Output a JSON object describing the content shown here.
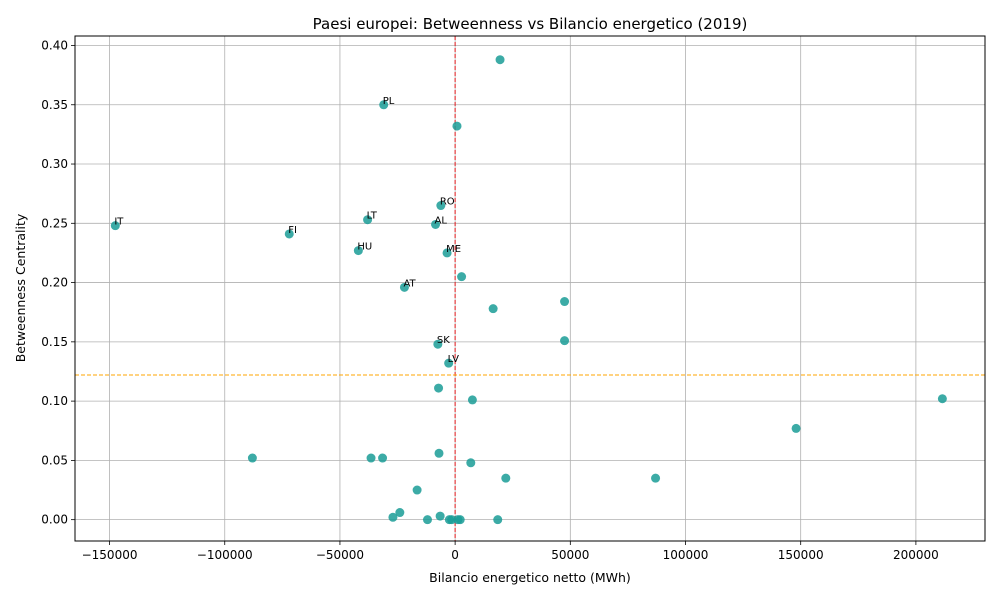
{
  "chart_data": {
    "type": "scatter",
    "title": "Paesi europei: Betweenness vs Bilancio energetico (2019)",
    "xlabel": "Bilancio energetico netto (MWh)",
    "ylabel": "Betweenness Centrality",
    "xlim": [
      -165000,
      230000
    ],
    "ylim": [
      -0.018,
      0.408
    ],
    "xticks": [
      -150000,
      -100000,
      -50000,
      0,
      50000,
      100000,
      150000,
      200000
    ],
    "xtick_labels": [
      "−150000",
      "−100000",
      "−50000",
      "0",
      "50000",
      "100000",
      "150000",
      "200000"
    ],
    "yticks": [
      0.0,
      0.05,
      0.1,
      0.15,
      0.2,
      0.25,
      0.3,
      0.35,
      0.4
    ],
    "ytick_labels": [
      "0.00",
      "0.05",
      "0.10",
      "0.15",
      "0.20",
      "0.25",
      "0.30",
      "0.35",
      "0.40"
    ],
    "grid": true,
    "point_color": "#1a9c97",
    "vline": {
      "x": 0,
      "color": "#e31a1c",
      "style": "dashed"
    },
    "hline": {
      "y": 0.122,
      "color": "#ffa500",
      "style": "dashed"
    },
    "points": [
      {
        "x": 19500,
        "y": 0.388,
        "label": ""
      },
      {
        "x": -31000,
        "y": 0.35,
        "label": "PL"
      },
      {
        "x": 800,
        "y": 0.332,
        "label": ""
      },
      {
        "x": -6200,
        "y": 0.265,
        "label": "RO"
      },
      {
        "x": -38000,
        "y": 0.253,
        "label": "LT"
      },
      {
        "x": -147500,
        "y": 0.248,
        "label": "IT"
      },
      {
        "x": -8500,
        "y": 0.249,
        "label": "AL"
      },
      {
        "x": -72000,
        "y": 0.241,
        "label": "FI"
      },
      {
        "x": -42000,
        "y": 0.227,
        "label": "HU"
      },
      {
        "x": -3500,
        "y": 0.225,
        "label": "ME"
      },
      {
        "x": 2800,
        "y": 0.205,
        "label": ""
      },
      {
        "x": -22000,
        "y": 0.196,
        "label": "AT"
      },
      {
        "x": 47500,
        "y": 0.184,
        "label": ""
      },
      {
        "x": 16500,
        "y": 0.178,
        "label": ""
      },
      {
        "x": 47500,
        "y": 0.151,
        "label": ""
      },
      {
        "x": -7500,
        "y": 0.148,
        "label": "SK"
      },
      {
        "x": -2800,
        "y": 0.132,
        "label": "LV"
      },
      {
        "x": -7200,
        "y": 0.111,
        "label": ""
      },
      {
        "x": 7500,
        "y": 0.101,
        "label": ""
      },
      {
        "x": 211500,
        "y": 0.102,
        "label": ""
      },
      {
        "x": 148000,
        "y": 0.077,
        "label": ""
      },
      {
        "x": -88000,
        "y": 0.052,
        "label": ""
      },
      {
        "x": -36500,
        "y": 0.052,
        "label": ""
      },
      {
        "x": -31500,
        "y": 0.052,
        "label": ""
      },
      {
        "x": -7000,
        "y": 0.056,
        "label": ""
      },
      {
        "x": 6800,
        "y": 0.048,
        "label": ""
      },
      {
        "x": 22000,
        "y": 0.035,
        "label": ""
      },
      {
        "x": 87000,
        "y": 0.035,
        "label": ""
      },
      {
        "x": -16500,
        "y": 0.025,
        "label": ""
      },
      {
        "x": -24000,
        "y": 0.006,
        "label": ""
      },
      {
        "x": -27000,
        "y": 0.002,
        "label": ""
      },
      {
        "x": -6500,
        "y": 0.003,
        "label": ""
      },
      {
        "x": -12000,
        "y": 0.0,
        "label": ""
      },
      {
        "x": -2500,
        "y": 0.0,
        "label": ""
      },
      {
        "x": -1500,
        "y": 0.0,
        "label": ""
      },
      {
        "x": 1200,
        "y": 0.0,
        "label": ""
      },
      {
        "x": 2200,
        "y": 0.0,
        "label": ""
      },
      {
        "x": 18500,
        "y": 0.0,
        "label": ""
      }
    ]
  }
}
